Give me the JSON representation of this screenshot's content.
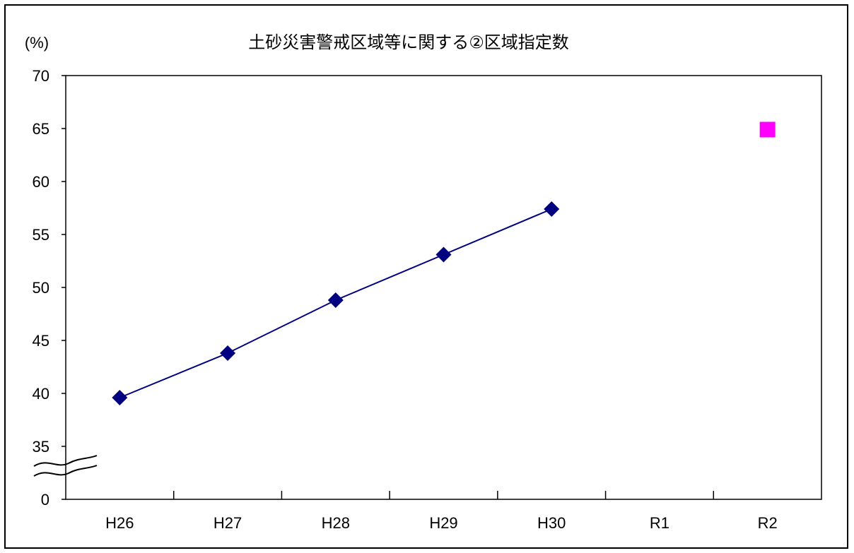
{
  "chart_data": {
    "type": "line",
    "title": "土砂災害警戒区域等に関する②区域指定数",
    "ylabel": "(%)",
    "xlabel": "",
    "categories": [
      "H26",
      "H27",
      "H28",
      "H29",
      "H30",
      "R1",
      "R2"
    ],
    "yticks": [
      "0",
      "35",
      "40",
      "45",
      "50",
      "55",
      "60",
      "65",
      "70"
    ],
    "ylim": [
      35,
      70
    ],
    "axis_break": true,
    "grid": false,
    "series": [
      {
        "color": "#000080",
        "marker": "diamond",
        "values": [
          39.6,
          43.8,
          48.8,
          53.1,
          57.4,
          null,
          null
        ]
      },
      {
        "color": "#ff00ff",
        "marker": "square",
        "values": [
          null,
          null,
          null,
          null,
          null,
          null,
          64.9
        ]
      }
    ]
  }
}
